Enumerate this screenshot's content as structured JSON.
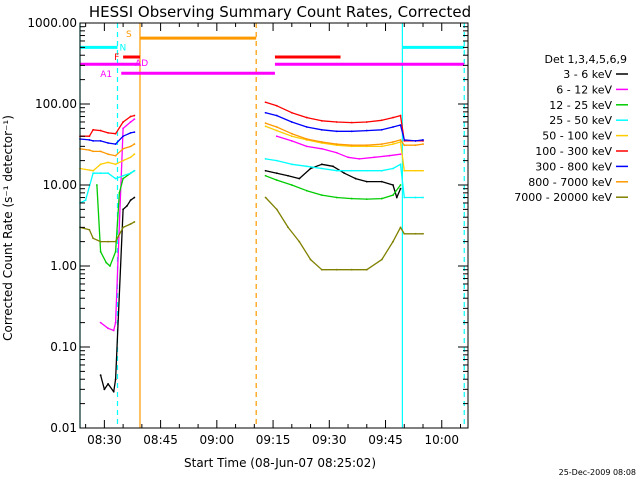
{
  "chart_data": {
    "type": "line",
    "title": "HESSI Observing Summary Count Rates, Corrected",
    "xlabel": "Start Time (08-Jun-07 08:25:02)",
    "ylabel": "Corrected Count Rate (s⁻¹ detector⁻¹)",
    "yscale": "log",
    "ylim": [
      0.01,
      1000
    ],
    "xlim_minutes": [
      503.5,
      607
    ],
    "x_tick_labels": [
      "08:30",
      "08:45",
      "09:00",
      "09:15",
      "09:30",
      "09:45",
      "10:00"
    ],
    "x_ticks_minutes": [
      510,
      525,
      540,
      555,
      570,
      585,
      600
    ],
    "y_tick_labels": [
      "0.01",
      "0.10",
      "1.00",
      "10.00",
      "100.00",
      "1000.00"
    ],
    "y_ticks": [
      0.01,
      0.1,
      1,
      10,
      100,
      1000
    ],
    "legend_title": "Det 1,3,4,5,6,9",
    "legend_placement": "right",
    "series": [
      {
        "name": "3 - 6 keV",
        "color": "#000000",
        "segments": [
          [
            [
              509,
              0.045
            ],
            [
              510,
              0.03
            ],
            [
              511,
              0.035
            ],
            [
              512.5,
              0.028
            ],
            [
              513,
              0.04
            ],
            [
              515,
              5
            ],
            [
              516,
              5.5
            ],
            [
              517,
              6.5
            ],
            [
              518,
              7
            ]
          ],
          [
            [
              553,
              15
            ],
            [
              556,
              14
            ],
            [
              559,
              13
            ],
            [
              562,
              12
            ],
            [
              565,
              16
            ],
            [
              568,
              18
            ],
            [
              571,
              17
            ],
            [
              574,
              14
            ],
            [
              577,
              12
            ],
            [
              580,
              11
            ],
            [
              584,
              11
            ],
            [
              587,
              10
            ],
            [
              588,
              7
            ],
            [
              589,
              9
            ]
          ]
        ]
      },
      {
        "name": "6 - 12 keV",
        "color": "#ff00ff",
        "segments": [
          [
            [
              509,
              0.2
            ],
            [
              511,
              0.17
            ],
            [
              512.5,
              0.16
            ],
            [
              513,
              0.2
            ],
            [
              515,
              50
            ],
            [
              517,
              60
            ],
            [
              518,
              65
            ]
          ],
          [
            [
              556,
              40
            ],
            [
              560,
              35
            ],
            [
              564,
              30
            ],
            [
              568,
              28
            ],
            [
              572,
              25
            ],
            [
              575,
              22
            ],
            [
              578,
              21
            ],
            [
              582,
              22
            ],
            [
              586,
              23
            ],
            [
              589,
              24
            ]
          ]
        ]
      },
      {
        "name": "12 - 25 keV",
        "color": "#00cc00",
        "segments": [
          [
            [
              508,
              10
            ],
            [
              509,
              1.5
            ],
            [
              510.5,
              1.1
            ],
            [
              511.5,
              1
            ],
            [
              513,
              1.5
            ],
            [
              514,
              8
            ],
            [
              515,
              12
            ],
            [
              517,
              14
            ],
            [
              518,
              15
            ]
          ],
          [
            [
              553,
              13
            ],
            [
              556,
              11.5
            ],
            [
              560,
              10
            ],
            [
              564,
              8.5
            ],
            [
              568,
              7.5
            ],
            [
              572,
              7
            ],
            [
              576,
              6.8
            ],
            [
              580,
              6.7
            ],
            [
              584,
              6.8
            ],
            [
              587,
              7.5
            ],
            [
              589,
              10
            ]
          ]
        ]
      },
      {
        "name": "25 - 50 keV",
        "color": "#00ffff",
        "segments": [
          [
            [
              503.5,
              6
            ],
            [
              505,
              6.5
            ],
            [
              507,
              14
            ],
            [
              509,
              14
            ],
            [
              511,
              14
            ],
            [
              513,
              12
            ],
            [
              515,
              13
            ],
            [
              517,
              14
            ],
            [
              518,
              15
            ]
          ],
          [
            [
              553,
              21
            ],
            [
              556,
              20
            ],
            [
              560,
              18
            ],
            [
              564,
              17
            ],
            [
              568,
              16
            ],
            [
              572,
              15
            ],
            [
              576,
              15
            ],
            [
              580,
              15
            ],
            [
              584,
              15
            ],
            [
              587,
              16
            ],
            [
              589,
              18
            ],
            [
              590,
              7
            ],
            [
              593,
              7
            ],
            [
              595,
              7
            ]
          ]
        ]
      },
      {
        "name": "50 - 100 keV",
        "color": "#ffcc00",
        "segments": [
          [
            [
              503.5,
              16
            ],
            [
              507,
              15
            ],
            [
              509,
              18
            ],
            [
              511,
              19
            ],
            [
              513,
              18
            ],
            [
              515,
              20
            ],
            [
              517,
              22
            ],
            [
              518,
              24
            ]
          ],
          [
            [
              553,
              53
            ],
            [
              556,
              47
            ],
            [
              560,
              40
            ],
            [
              564,
              36
            ],
            [
              568,
              33
            ],
            [
              572,
              31
            ],
            [
              576,
              30
            ],
            [
              580,
              30
            ],
            [
              584,
              30
            ],
            [
              587,
              32
            ],
            [
              589,
              34
            ],
            [
              590,
              15
            ],
            [
              593,
              15
            ],
            [
              595,
              15
            ]
          ]
        ]
      },
      {
        "name": "100 - 300 keV",
        "color": "#ff0000",
        "segments": [
          [
            [
              503.5,
              40
            ],
            [
              506,
              40
            ],
            [
              507,
              48
            ],
            [
              509,
              47
            ],
            [
              511,
              44
            ],
            [
              513,
              43
            ],
            [
              515,
              60
            ],
            [
              517,
              70
            ],
            [
              518,
              72
            ]
          ],
          [
            [
              553,
              105
            ],
            [
              556,
              95
            ],
            [
              560,
              78
            ],
            [
              564,
              68
            ],
            [
              568,
              62
            ],
            [
              572,
              60
            ],
            [
              576,
              59
            ],
            [
              580,
              60
            ],
            [
              584,
              63
            ],
            [
              587,
              68
            ],
            [
              589,
              72
            ],
            [
              590,
              35
            ],
            [
              593,
              35
            ],
            [
              595,
              35
            ]
          ]
        ]
      },
      {
        "name": "300 - 800 keV",
        "color": "#0000ff",
        "segments": [
          [
            [
              503.5,
              37
            ],
            [
              506,
              36
            ],
            [
              507,
              35
            ],
            [
              509,
              35
            ],
            [
              511,
              33
            ],
            [
              513,
              32
            ],
            [
              515,
              40
            ],
            [
              517,
              44
            ],
            [
              518,
              45
            ]
          ],
          [
            [
              553,
              78
            ],
            [
              556,
              72
            ],
            [
              560,
              60
            ],
            [
              564,
              52
            ],
            [
              568,
              48
            ],
            [
              572,
              46
            ],
            [
              576,
              46
            ],
            [
              580,
              47
            ],
            [
              584,
              48
            ],
            [
              587,
              52
            ],
            [
              589,
              55
            ],
            [
              590,
              36
            ],
            [
              593,
              35
            ],
            [
              595,
              36
            ]
          ]
        ]
      },
      {
        "name": "800 - 7000 keV",
        "color": "#ff9900",
        "segments": [
          [
            [
              503.5,
              28
            ],
            [
              506,
              27
            ],
            [
              507,
              26
            ],
            [
              509,
              26
            ],
            [
              511,
              24
            ],
            [
              513,
              23
            ],
            [
              515,
              28
            ],
            [
              517,
              30
            ],
            [
              518,
              32
            ]
          ],
          [
            [
              553,
              58
            ],
            [
              556,
              52
            ],
            [
              560,
              43
            ],
            [
              564,
              37
            ],
            [
              568,
              34
            ],
            [
              572,
              32
            ],
            [
              576,
              31
            ],
            [
              580,
              31
            ],
            [
              584,
              32
            ],
            [
              587,
              34
            ],
            [
              589,
              36
            ],
            [
              590,
              31
            ],
            [
              593,
              31
            ],
            [
              595,
              32
            ]
          ]
        ]
      },
      {
        "name": "7000 - 20000 keV",
        "color": "#808000",
        "segments": [
          [
            [
              503.5,
              3
            ],
            [
              506,
              2.8
            ],
            [
              507,
              2.2
            ],
            [
              509,
              2
            ],
            [
              511,
              2
            ],
            [
              513,
              2
            ],
            [
              515,
              3
            ],
            [
              517,
              3.3
            ],
            [
              518,
              3.5
            ]
          ],
          [
            [
              553,
              7
            ],
            [
              556,
              5
            ],
            [
              559,
              3
            ],
            [
              562,
              2
            ],
            [
              565,
              1.2
            ],
            [
              568,
              0.9
            ],
            [
              572,
              0.9
            ],
            [
              576,
              0.9
            ],
            [
              580,
              0.9
            ],
            [
              584,
              1.2
            ],
            [
              587,
              2
            ],
            [
              589,
              3
            ],
            [
              590,
              2.5
            ],
            [
              593,
              2.5
            ],
            [
              595,
              2.5
            ]
          ]
        ]
      }
    ],
    "vertical_markers": [
      {
        "minute": 503.5,
        "color": "#00ffff",
        "style": "solid"
      },
      {
        "minute": 513.5,
        "color": "#00ffff",
        "style": "dashed"
      },
      {
        "minute": 519.5,
        "color": "#ff9900",
        "style": "solid"
      },
      {
        "minute": 550.5,
        "color": "#ff9900",
        "style": "dashed"
      },
      {
        "minute": 589.5,
        "color": "#00ffff",
        "style": "solid"
      },
      {
        "minute": 606,
        "color": "#00ffff",
        "style": "dashed"
      }
    ],
    "state_bars": [
      {
        "label": "N",
        "color": "#00ffff",
        "level": 500,
        "ranges": [
          [
            503.5,
            513.5
          ],
          [
            589.5,
            606
          ]
        ]
      },
      {
        "label": "S",
        "color": "#ff9900",
        "level": 650,
        "ranges": [
          [
            519.5,
            550.5
          ]
        ]
      },
      {
        "label": "F",
        "color": "#ff0000",
        "level": 380,
        "ranges": [
          [
            515,
            519.5
          ],
          [
            555.5,
            573
          ]
        ]
      },
      {
        "label": "AD",
        "color": "#ff00ff",
        "level": 310,
        "ranges": [
          [
            503.5,
            519.5
          ],
          [
            555.5,
            606
          ]
        ]
      },
      {
        "label": "A1",
        "color": "#ff00ff",
        "level": 240,
        "ranges": [
          [
            514.5,
            555.5
          ]
        ]
      }
    ],
    "timestamp": "25-Dec-2009 08:08"
  }
}
